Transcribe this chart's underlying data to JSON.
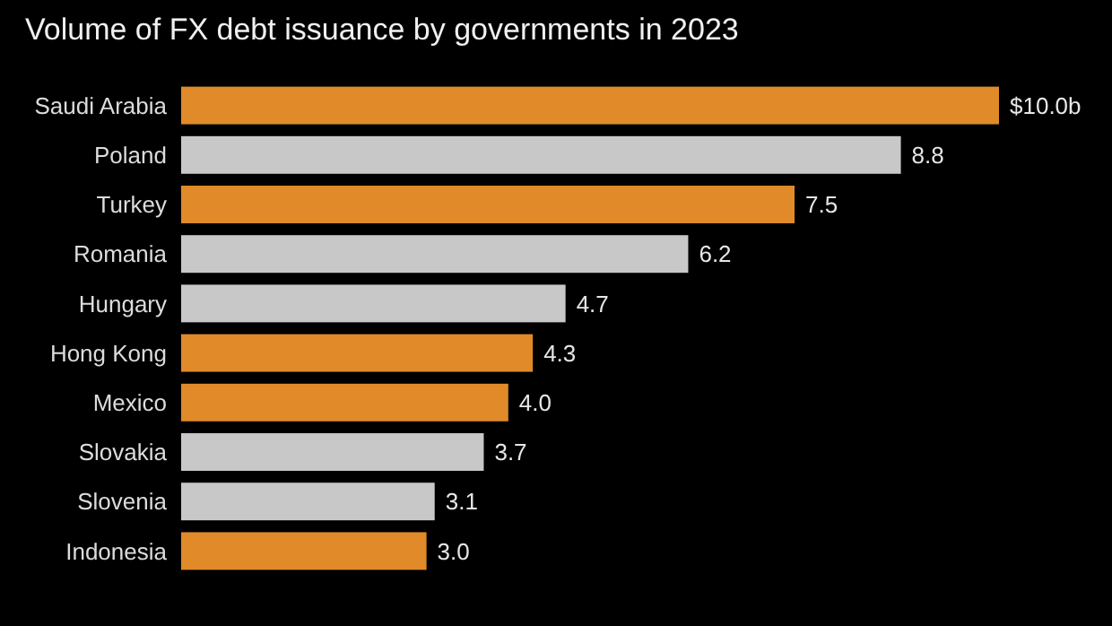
{
  "chart_data": {
    "type": "bar",
    "orientation": "horizontal",
    "title": "Volume of FX debt issuance by governments in 2023",
    "categories": [
      "Saudi Arabia",
      "Poland",
      "Turkey",
      "Romania",
      "Hungary",
      "Hong Kong",
      "Mexico",
      "Slovakia",
      "Slovenia",
      "Indonesia"
    ],
    "values": [
      10.0,
      8.8,
      7.5,
      6.2,
      4.7,
      4.3,
      4.0,
      3.7,
      3.1,
      3.0
    ],
    "value_labels": [
      "$10.0b",
      "8.8",
      "7.5",
      "6.2",
      "4.7",
      "4.3",
      "4.0",
      "3.7",
      "3.1",
      "3.0"
    ],
    "colors": [
      "#e08a2a",
      "#c8c8c8",
      "#e08a2a",
      "#c8c8c8",
      "#c8c8c8",
      "#e08a2a",
      "#e08a2a",
      "#c8c8c8",
      "#c8c8c8",
      "#e08a2a"
    ],
    "xlim": [
      0,
      10
    ]
  }
}
